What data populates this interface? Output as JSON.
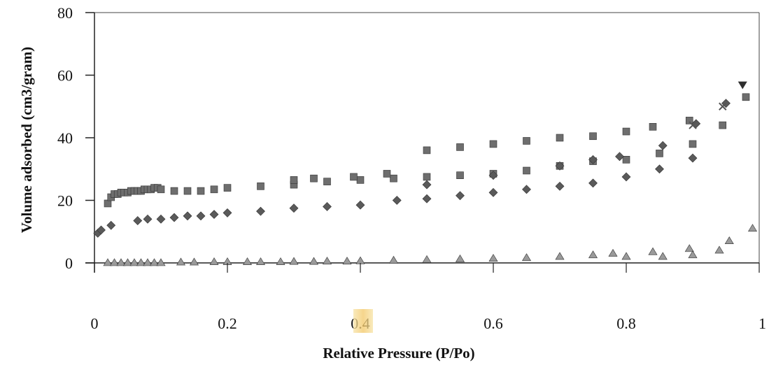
{
  "chart_data": {
    "type": "scatter",
    "title": "",
    "xlabel": "Relative Pressure (P/Po)",
    "ylabel": "Volume adsorbed (cm3/gram)",
    "xlim": [
      0,
      1
    ],
    "ylim": [
      0,
      80
    ],
    "x_ticks": [
      "0",
      "0.2",
      "0.4",
      "0.6",
      "0.8",
      "1"
    ],
    "y_ticks": [
      "0",
      "20",
      "40",
      "60",
      "80"
    ],
    "grid": false,
    "legend": "none",
    "series": [
      {
        "marker": "square",
        "color": "#6e6e6e",
        "points": [
          [
            0.02,
            19
          ],
          [
            0.025,
            21
          ],
          [
            0.03,
            22
          ],
          [
            0.035,
            22
          ],
          [
            0.04,
            22.5
          ],
          [
            0.045,
            22.5
          ],
          [
            0.05,
            22.5
          ],
          [
            0.055,
            23
          ],
          [
            0.06,
            23
          ],
          [
            0.065,
            23
          ],
          [
            0.07,
            23
          ],
          [
            0.075,
            23.5
          ],
          [
            0.08,
            23.5
          ],
          [
            0.085,
            23.5
          ],
          [
            0.09,
            24
          ],
          [
            0.095,
            24
          ],
          [
            0.1,
            23.5
          ],
          [
            0.12,
            23
          ],
          [
            0.14,
            23
          ],
          [
            0.16,
            23
          ],
          [
            0.18,
            23.5
          ],
          [
            0.2,
            24
          ],
          [
            0.25,
            24.5
          ],
          [
            0.3,
            25
          ],
          [
            0.35,
            26
          ],
          [
            0.4,
            26.5
          ],
          [
            0.45,
            27
          ],
          [
            0.5,
            27.5
          ],
          [
            0.55,
            28
          ],
          [
            0.6,
            28.5
          ],
          [
            0.65,
            29.5
          ],
          [
            0.7,
            31
          ],
          [
            0.75,
            32.5
          ],
          [
            0.8,
            33
          ],
          [
            0.85,
            35
          ],
          [
            0.9,
            38
          ],
          [
            0.945,
            44
          ],
          [
            0.98,
            53
          ],
          [
            0.5,
            36
          ],
          [
            0.55,
            37
          ],
          [
            0.6,
            38
          ],
          [
            0.65,
            39
          ],
          [
            0.7,
            40
          ],
          [
            0.75,
            40.5
          ],
          [
            0.8,
            42
          ],
          [
            0.84,
            43.5
          ],
          [
            0.895,
            45.5
          ],
          [
            0.3,
            26.5
          ],
          [
            0.33,
            27
          ],
          [
            0.39,
            27.5
          ],
          [
            0.44,
            28.5
          ]
        ]
      },
      {
        "marker": "diamond",
        "color": "#5a5a5a",
        "points": [
          [
            0.005,
            9.5
          ],
          [
            0.01,
            10.5
          ],
          [
            0.025,
            12
          ],
          [
            0.065,
            13.5
          ],
          [
            0.08,
            14
          ],
          [
            0.1,
            14
          ],
          [
            0.12,
            14.5
          ],
          [
            0.14,
            15
          ],
          [
            0.16,
            15
          ],
          [
            0.18,
            15.5
          ],
          [
            0.2,
            16
          ],
          [
            0.25,
            16.5
          ],
          [
            0.3,
            17.5
          ],
          [
            0.35,
            18
          ],
          [
            0.4,
            18.5
          ],
          [
            0.455,
            20
          ],
          [
            0.5,
            20.5
          ],
          [
            0.55,
            21.5
          ],
          [
            0.6,
            22.5
          ],
          [
            0.65,
            23.5
          ],
          [
            0.7,
            24.5
          ],
          [
            0.75,
            25.5
          ],
          [
            0.8,
            27.5
          ],
          [
            0.85,
            30
          ],
          [
            0.9,
            33.5
          ],
          [
            0.5,
            25
          ],
          [
            0.6,
            28
          ],
          [
            0.7,
            31
          ],
          [
            0.75,
            33
          ],
          [
            0.79,
            34
          ],
          [
            0.855,
            37.5
          ],
          [
            0.905,
            44.5
          ],
          [
            0.95,
            51
          ]
        ]
      },
      {
        "marker": "triangle",
        "color": "#9a9a9a",
        "points": [
          [
            0.02,
            0
          ],
          [
            0.03,
            0
          ],
          [
            0.04,
            0
          ],
          [
            0.05,
            0
          ],
          [
            0.06,
            0
          ],
          [
            0.07,
            0
          ],
          [
            0.08,
            0
          ],
          [
            0.09,
            0
          ],
          [
            0.1,
            0
          ],
          [
            0.13,
            0.2
          ],
          [
            0.15,
            0.2
          ],
          [
            0.18,
            0.3
          ],
          [
            0.2,
            0.3
          ],
          [
            0.23,
            0.3
          ],
          [
            0.25,
            0.3
          ],
          [
            0.28,
            0.3
          ],
          [
            0.3,
            0.4
          ],
          [
            0.33,
            0.4
          ],
          [
            0.35,
            0.5
          ],
          [
            0.38,
            0.5
          ],
          [
            0.4,
            0.6
          ],
          [
            0.45,
            0.8
          ],
          [
            0.5,
            1
          ],
          [
            0.55,
            1.2
          ],
          [
            0.6,
            1.4
          ],
          [
            0.65,
            1.6
          ],
          [
            0.7,
            2
          ],
          [
            0.75,
            2.5
          ],
          [
            0.78,
            3
          ],
          [
            0.8,
            2
          ],
          [
            0.84,
            3.5
          ],
          [
            0.855,
            2
          ],
          [
            0.895,
            4.5
          ],
          [
            0.9,
            2.5
          ],
          [
            0.94,
            4
          ],
          [
            0.955,
            7
          ],
          [
            0.99,
            11
          ]
        ]
      },
      {
        "marker": "triangle-down",
        "color": "#2e2e2e",
        "points": [
          [
            0.975,
            57
          ]
        ]
      },
      {
        "marker": "cross",
        "color": "#555555",
        "points": [
          [
            0.945,
            50
          ],
          [
            0.9,
            44
          ]
        ]
      }
    ]
  }
}
